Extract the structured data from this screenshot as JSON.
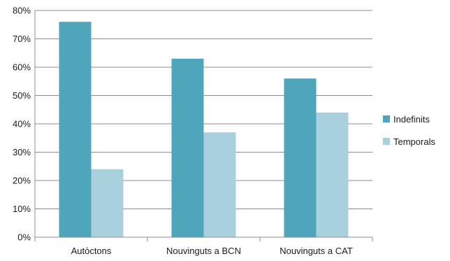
{
  "chart_data": {
    "type": "bar",
    "title": "",
    "xlabel": "",
    "ylabel": "",
    "categories": [
      "Autòctons",
      "Nouvinguts a BCN",
      "Nouvinguts a CAT"
    ],
    "series": [
      {
        "name": "Indefinits",
        "values": [
          76,
          63,
          56
        ],
        "color": "#4fa6bb"
      },
      {
        "name": "Temporals",
        "values": [
          24,
          37,
          44
        ],
        "color": "#a8d0dd"
      }
    ],
    "ylim": [
      0,
      80
    ],
    "yticks": [
      0,
      10,
      20,
      30,
      40,
      50,
      60,
      70,
      80
    ],
    "ytick_format": "%",
    "grid": true,
    "legend_position": "right"
  }
}
